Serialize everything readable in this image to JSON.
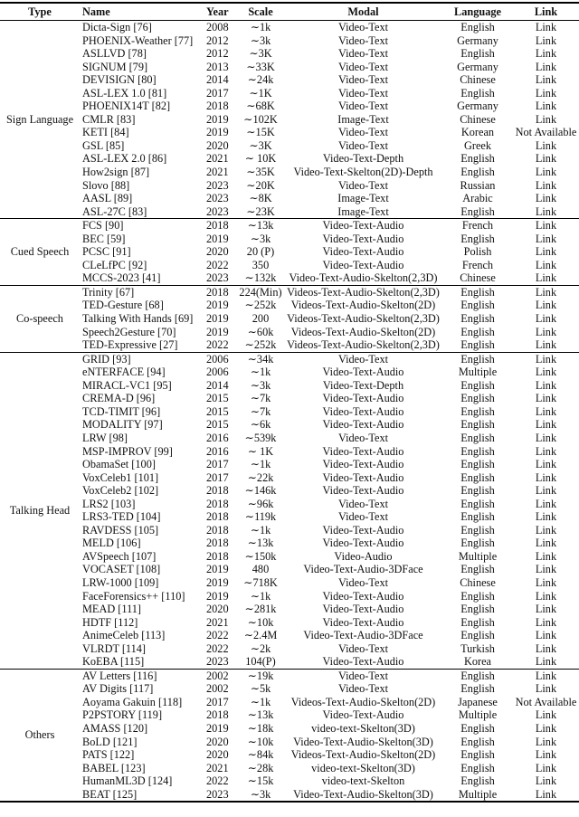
{
  "headers": {
    "type": "Type",
    "name": "Name",
    "year": "Year",
    "scale": "Scale",
    "modal": "Modal",
    "language": "Language",
    "link": "Link"
  },
  "groups": [
    {
      "type": "Sign Language",
      "rows": [
        [
          "Dicta-Sign [76]",
          "2008",
          "∼1k",
          "Video-Text",
          "English",
          "Link"
        ],
        [
          "PHOENIX-Weather [77]",
          "2012",
          "∼3k",
          "Video-Text",
          "Germany",
          "Link"
        ],
        [
          "ASLLVD [78]",
          "2012",
          "∼3K",
          "Video-Text",
          "English",
          "Link"
        ],
        [
          "SIGNUM [79]",
          "2013",
          "∼33K",
          "Video-Text",
          "Germany",
          "Link"
        ],
        [
          "DEVISIGN [80]",
          "2014",
          "∼24k",
          "Video-Text",
          "Chinese",
          "Link"
        ],
        [
          "ASL-LEX 1.0 [81]",
          "2017",
          "∼1K",
          "Video-Text",
          "English",
          "Link"
        ],
        [
          "PHOENIX14T [82]",
          "2018",
          "∼68K",
          "Video-Text",
          "Germany",
          "Link"
        ],
        [
          "CMLR [83]",
          "2019",
          "∼102K",
          "Image-Text",
          "Chinese",
          "Link"
        ],
        [
          "KETI [84]",
          "2019",
          "∼15K",
          "Video-Text",
          "Korean",
          "Not Available"
        ],
        [
          "GSL [85]",
          "2020",
          "∼3K",
          "Video-Text",
          "Greek",
          "Link"
        ],
        [
          "ASL-LEX 2.0 [86]",
          "2021",
          "∼ 10K",
          "Video-Text-Depth",
          "English",
          "Link"
        ],
        [
          "How2sign [87]",
          "2021",
          "∼35K",
          "Video-Text-Skelton(2D)-Depth",
          "English",
          "Link"
        ],
        [
          "Slovo [88]",
          "2023",
          "∼20K",
          "Video-Text",
          "Russian",
          "Link"
        ],
        [
          "AASL [89]",
          "2023",
          "∼8K",
          "Image-Text",
          "Arabic",
          "Link"
        ],
        [
          "ASL-27C [83]",
          "2023",
          "∼23K",
          "Image-Text",
          "English",
          "Link"
        ]
      ]
    },
    {
      "type": "Cued Speech",
      "rows": [
        [
          "FCS [90]",
          "2018",
          "∼13k",
          "Video-Text-Audio",
          "French",
          "Link"
        ],
        [
          "BEC [59]",
          "2019",
          "∼3k",
          "Video-Text-Audio",
          "English",
          "Link"
        ],
        [
          "PCSC [91]",
          "2020",
          "20 (P)",
          "Video-Text-Audio",
          "Polish",
          "Link"
        ],
        [
          "CLeLfPC [92]",
          "2022",
          "350",
          "Video-Text-Audio",
          "French",
          "Link"
        ],
        [
          "MCCS-2023 [41]",
          "2023",
          "∼132k",
          "Video-Text-Audio-Skelton(2,3D)",
          "Chinese",
          "Link"
        ]
      ]
    },
    {
      "type": "Co-speech",
      "rows": [
        [
          "Trinity [67]",
          "2018",
          "224(Min)",
          "Videos-Text-Audio-Skelton(2,3D)",
          "English",
          "Link"
        ],
        [
          "TED-Gesture [68]",
          "2019",
          "∼252k",
          "Videos-Text-Audio-Skelton(2D)",
          "English",
          "Link"
        ],
        [
          "Talking With Hands [69]",
          "2019",
          "200",
          "Videos-Text-Audio-Skelton(2,3D)",
          "English",
          "Link"
        ],
        [
          "Speech2Gesture [70]",
          "2019",
          "∼60k",
          "Videos-Text-Audio-Skelton(2D)",
          "English",
          "Link"
        ],
        [
          "TED-Expressive [27]",
          "2022",
          "∼252k",
          "Videos-Text-Audio-Skelton(2,3D)",
          "English",
          "Link"
        ]
      ]
    },
    {
      "type": "Talking Head",
      "rows": [
        [
          "GRID [93]",
          "2006",
          "∼34k",
          "Video-Text",
          "English",
          "Link"
        ],
        [
          "eNTERFACE [94]",
          "2006",
          "∼1k",
          "Video-Text-Audio",
          "Multiple",
          "Link"
        ],
        [
          "MIRACL-VC1 [95]",
          "2014",
          "∼3k",
          "Video-Text-Depth",
          "English",
          "Link"
        ],
        [
          "CREMA-D [96]",
          "2015",
          "∼7k",
          "Video-Text-Audio",
          "English",
          "Link"
        ],
        [
          "TCD-TIMIT [96]",
          "2015",
          "∼7k",
          "Video-Text-Audio",
          "English",
          "Link"
        ],
        [
          "MODALITY [97]",
          "2015",
          "∼6k",
          "Video-Text-Audio",
          "English",
          "Link"
        ],
        [
          "LRW [98]",
          "2016",
          "∼539k",
          "Video-Text",
          "English",
          "Link"
        ],
        [
          "MSP-IMPROV [99]",
          "2016",
          "∼ 1K",
          "Video-Text-Audio",
          "English",
          "Link"
        ],
        [
          "ObamaSet [100]",
          "2017",
          "∼1k",
          "Video-Text-Audio",
          "English",
          "Link"
        ],
        [
          "VoxCeleb1 [101]",
          "2017",
          "∼22k",
          "Video-Text-Audio",
          "English",
          "Link"
        ],
        [
          "VoxCeleb2 [102]",
          "2018",
          "∼146k",
          "Video-Text-Audio",
          "English",
          "Link"
        ],
        [
          "LRS2 [103]",
          "2018",
          "∼96k",
          "Video-Text",
          "English",
          "Link"
        ],
        [
          "LRS3-TED [104]",
          "2018",
          "∼119k",
          "Video-Text",
          "English",
          "Link"
        ],
        [
          "RAVDESS [105]",
          "2018",
          "∼1k",
          "Video-Text-Audio",
          "English",
          "Link"
        ],
        [
          "MELD [106]",
          "2018",
          "∼13k",
          "Video-Text-Audio",
          "English",
          "Link"
        ],
        [
          "AVSpeech [107]",
          "2018",
          "∼150k",
          "Video-Audio",
          "Multiple",
          "Link"
        ],
        [
          "VOCASET [108]",
          "2019",
          "480",
          "Video-Text-Audio-3DFace",
          "English",
          "Link"
        ],
        [
          "LRW-1000 [109]",
          "2019",
          "∼718K",
          "Video-Text",
          "Chinese",
          "Link"
        ],
        [
          "FaceForensics++ [110]",
          "2019",
          "∼1k",
          "Video-Text-Audio",
          "English",
          "Link"
        ],
        [
          "MEAD [111]",
          "2020",
          "∼281k",
          "Video-Text-Audio",
          "English",
          "Link"
        ],
        [
          "HDTF [112]",
          "2021",
          "∼10k",
          "Video-Text-Audio",
          "English",
          "Link"
        ],
        [
          "AnimeCeleb [113]",
          "2022",
          "∼2.4M",
          "Video-Text-Audio-3DFace",
          "English",
          "Link"
        ],
        [
          "VLRDT [114]",
          "2022",
          "∼2k",
          "Video-Text",
          "Turkish",
          "Link"
        ],
        [
          "KoEBA [115]",
          "2023",
          "104(P)",
          "Video-Text-Audio",
          "Korea",
          "Link"
        ]
      ]
    },
    {
      "type": "Others",
      "rows": [
        [
          "AV Letters [116]",
          "2002",
          "∼19k",
          "Video-Text",
          "English",
          "Link"
        ],
        [
          "AV Digits [117]",
          "2002",
          "∼5k",
          "Video-Text",
          "English",
          "Link"
        ],
        [
          "Aoyama Gakuin [118]",
          "2017",
          "∼1k",
          "Videos-Text-Audio-Skelton(2D)",
          "Japanese",
          "Not Available"
        ],
        [
          "P2PSTORY [119]",
          "2018",
          "∼13k",
          "Video-Text-Audio",
          "Multiple",
          "Link"
        ],
        [
          "AMASS [120]",
          "2019",
          "∼18k",
          "video-text-Skelton(3D)",
          "English",
          "Link"
        ],
        [
          "BoLD [121]",
          "2020",
          "∼10k",
          "Video-Text-Audio-Skelton(3D)",
          "English",
          "Link"
        ],
        [
          "PATS [122]",
          "2020",
          "∼84k",
          "Videos-Text-Audio-Skelton(2D)",
          "English",
          "Link"
        ],
        [
          "BABEL [123]",
          "2021",
          "∼28k",
          "video-text-Skelton(3D)",
          "English",
          "Link"
        ],
        [
          "HumanML3D [124]",
          "2022",
          "∼15k",
          "video-text-Skelton",
          "English",
          "Link"
        ],
        [
          "BEAT [125]",
          "2023",
          "∼3k",
          "Video-Text-Audio-Skelton(3D)",
          "Multiple",
          "Link"
        ]
      ]
    }
  ]
}
